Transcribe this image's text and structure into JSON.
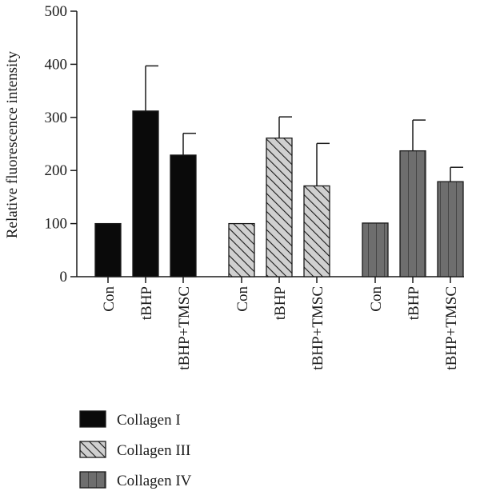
{
  "chart_data": {
    "type": "bar",
    "title": "",
    "xlabel": "",
    "ylabel": "Relative fluorescence intensity",
    "ylim": [
      0,
      500
    ],
    "yticks": [
      0,
      100,
      200,
      300,
      400,
      500
    ],
    "grid": false,
    "legend_position": "bottom-left",
    "groups": [
      {
        "name": "Collagen I",
        "pattern": "solid",
        "color": "#0a0a0a",
        "categories": [
          "Con",
          "tBHP",
          "tBHP+TMSC"
        ],
        "values": [
          100,
          312,
          229
        ],
        "errors": [
          0,
          85,
          41
        ]
      },
      {
        "name": "Collagen III",
        "pattern": "hatched",
        "color": "#c8c8c8",
        "categories": [
          "Con",
          "tBHP",
          "tBHP+TMSC"
        ],
        "values": [
          100,
          261,
          171
        ],
        "errors": [
          0,
          40,
          80
        ]
      },
      {
        "name": "Collagen IV",
        "pattern": "vertical-lines",
        "color": "#6e6e6e",
        "categories": [
          "Con",
          "tBHP",
          "tBHP+TMSC"
        ],
        "values": [
          101,
          237,
          179
        ],
        "errors": [
          0,
          58,
          27
        ]
      }
    ]
  }
}
